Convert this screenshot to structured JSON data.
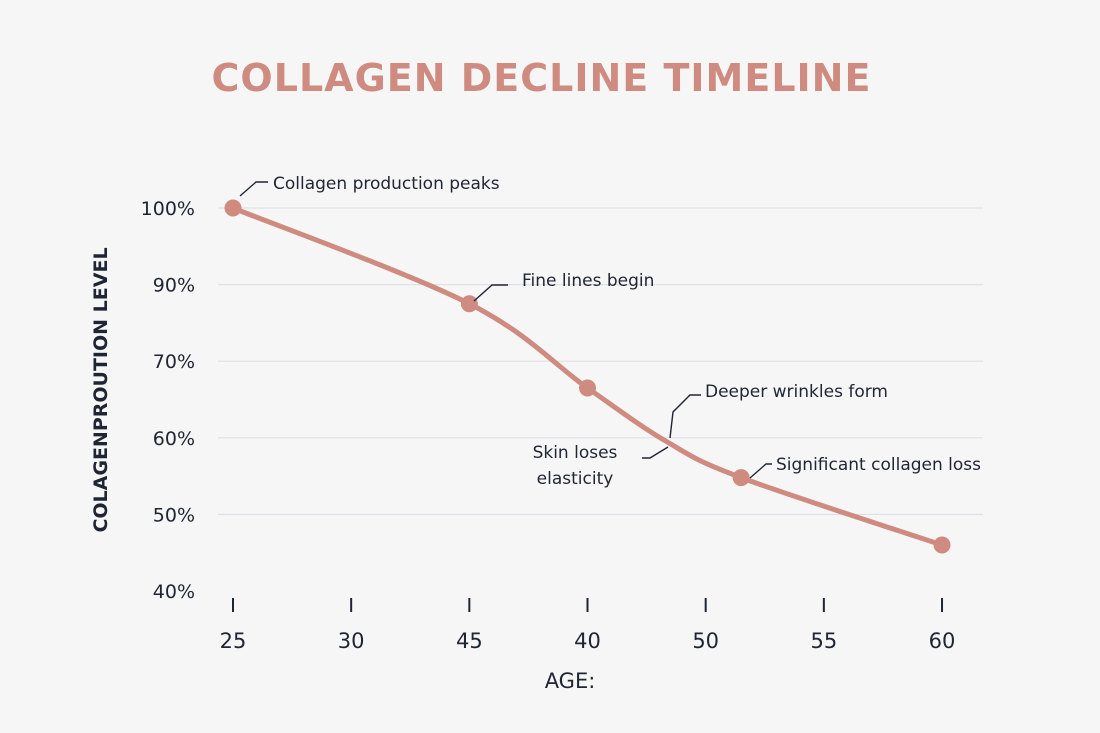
{
  "chart_data": {
    "type": "line",
    "title": "COLLAGEN DECLINE TIMELINE",
    "xlabel": "AGE:",
    "ylabel": "COLAGENPROUTION LEVEL",
    "x_tick_labels": [
      "25",
      "30",
      "45",
      "40",
      "50",
      "55",
      "60"
    ],
    "y_tick_labels": [
      "100%",
      "90%",
      "70%",
      "60%",
      "50%",
      "40%"
    ],
    "grid": true,
    "series": [
      {
        "color": "#cf8b7f",
        "points": [
          {
            "x_index": 0.0,
            "y_level": 0.0
          },
          {
            "x_index": 2.0,
            "y_level": 1.25
          },
          {
            "x_index": 3.0,
            "y_level": 2.35
          },
          {
            "x_index": 3.67,
            "y_level": 3.05
          },
          {
            "x_index": 4.3,
            "y_level": 3.52
          },
          {
            "x_index": 6.0,
            "y_level": 4.4
          }
        ]
      }
    ],
    "markers": [
      0,
      1,
      2,
      4,
      5
    ],
    "annotations": [
      {
        "lines": [
          "Collagen production peaks"
        ],
        "point": 0
      },
      {
        "lines": [
          "Fine lines begin"
        ],
        "point": 1
      },
      {
        "lines": [
          "Deeper wrinkles form"
        ],
        "point": 3
      },
      {
        "lines": [
          "Skin loses",
          "elasticity"
        ],
        "point": 3
      },
      {
        "lines": [
          "Significant collagen loss"
        ],
        "point": 4
      }
    ],
    "colors": {
      "title": "#cf8b7f",
      "line": "#cf8b7f",
      "text": "#1f2533",
      "grid": "#dfe1e6"
    }
  }
}
